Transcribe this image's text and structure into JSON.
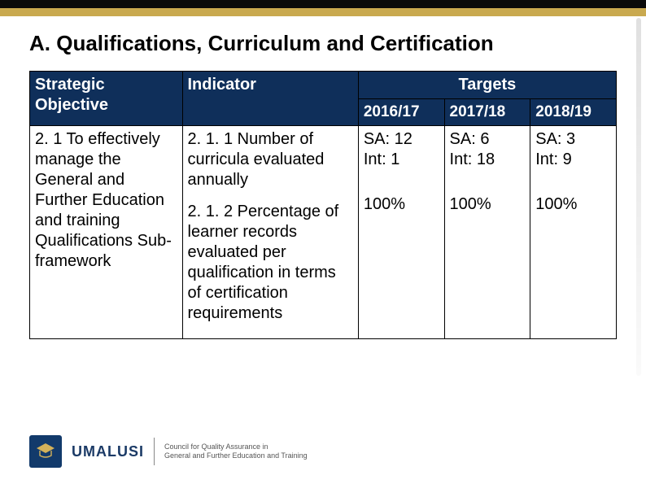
{
  "title": "A. Qualifications, Curriculum and Certification",
  "table": {
    "headers": {
      "strategic_objective": "Strategic Objective",
      "indicator": "Indicator",
      "targets_label": "Targets",
      "years": [
        "2016/17",
        "2017/18",
        "2018/19"
      ]
    },
    "strategic_objective": "2. 1 To effectively manage the General and Further Education and training Qualifications Sub-framework",
    "indicators": [
      {
        "text": "2. 1. 1 Number of curricula evaluated annually",
        "targets": [
          "SA: 12\nInt: 1",
          "SA: 6\nInt: 18",
          "SA: 3\nInt: 9"
        ]
      },
      {
        "text": "2. 1. 2 Percentage of learner records evaluated per qualification in terms of certification requirements",
        "targets": [
          "100%",
          "100%",
          "100%"
        ]
      }
    ]
  },
  "footer": {
    "brand": "UMALUSI",
    "tagline1": "Council for Quality Assurance in",
    "tagline2": "General and Further Education and Training"
  },
  "colors": {
    "header_bg": "#0f2f5a",
    "gold": "#c9a94f"
  }
}
